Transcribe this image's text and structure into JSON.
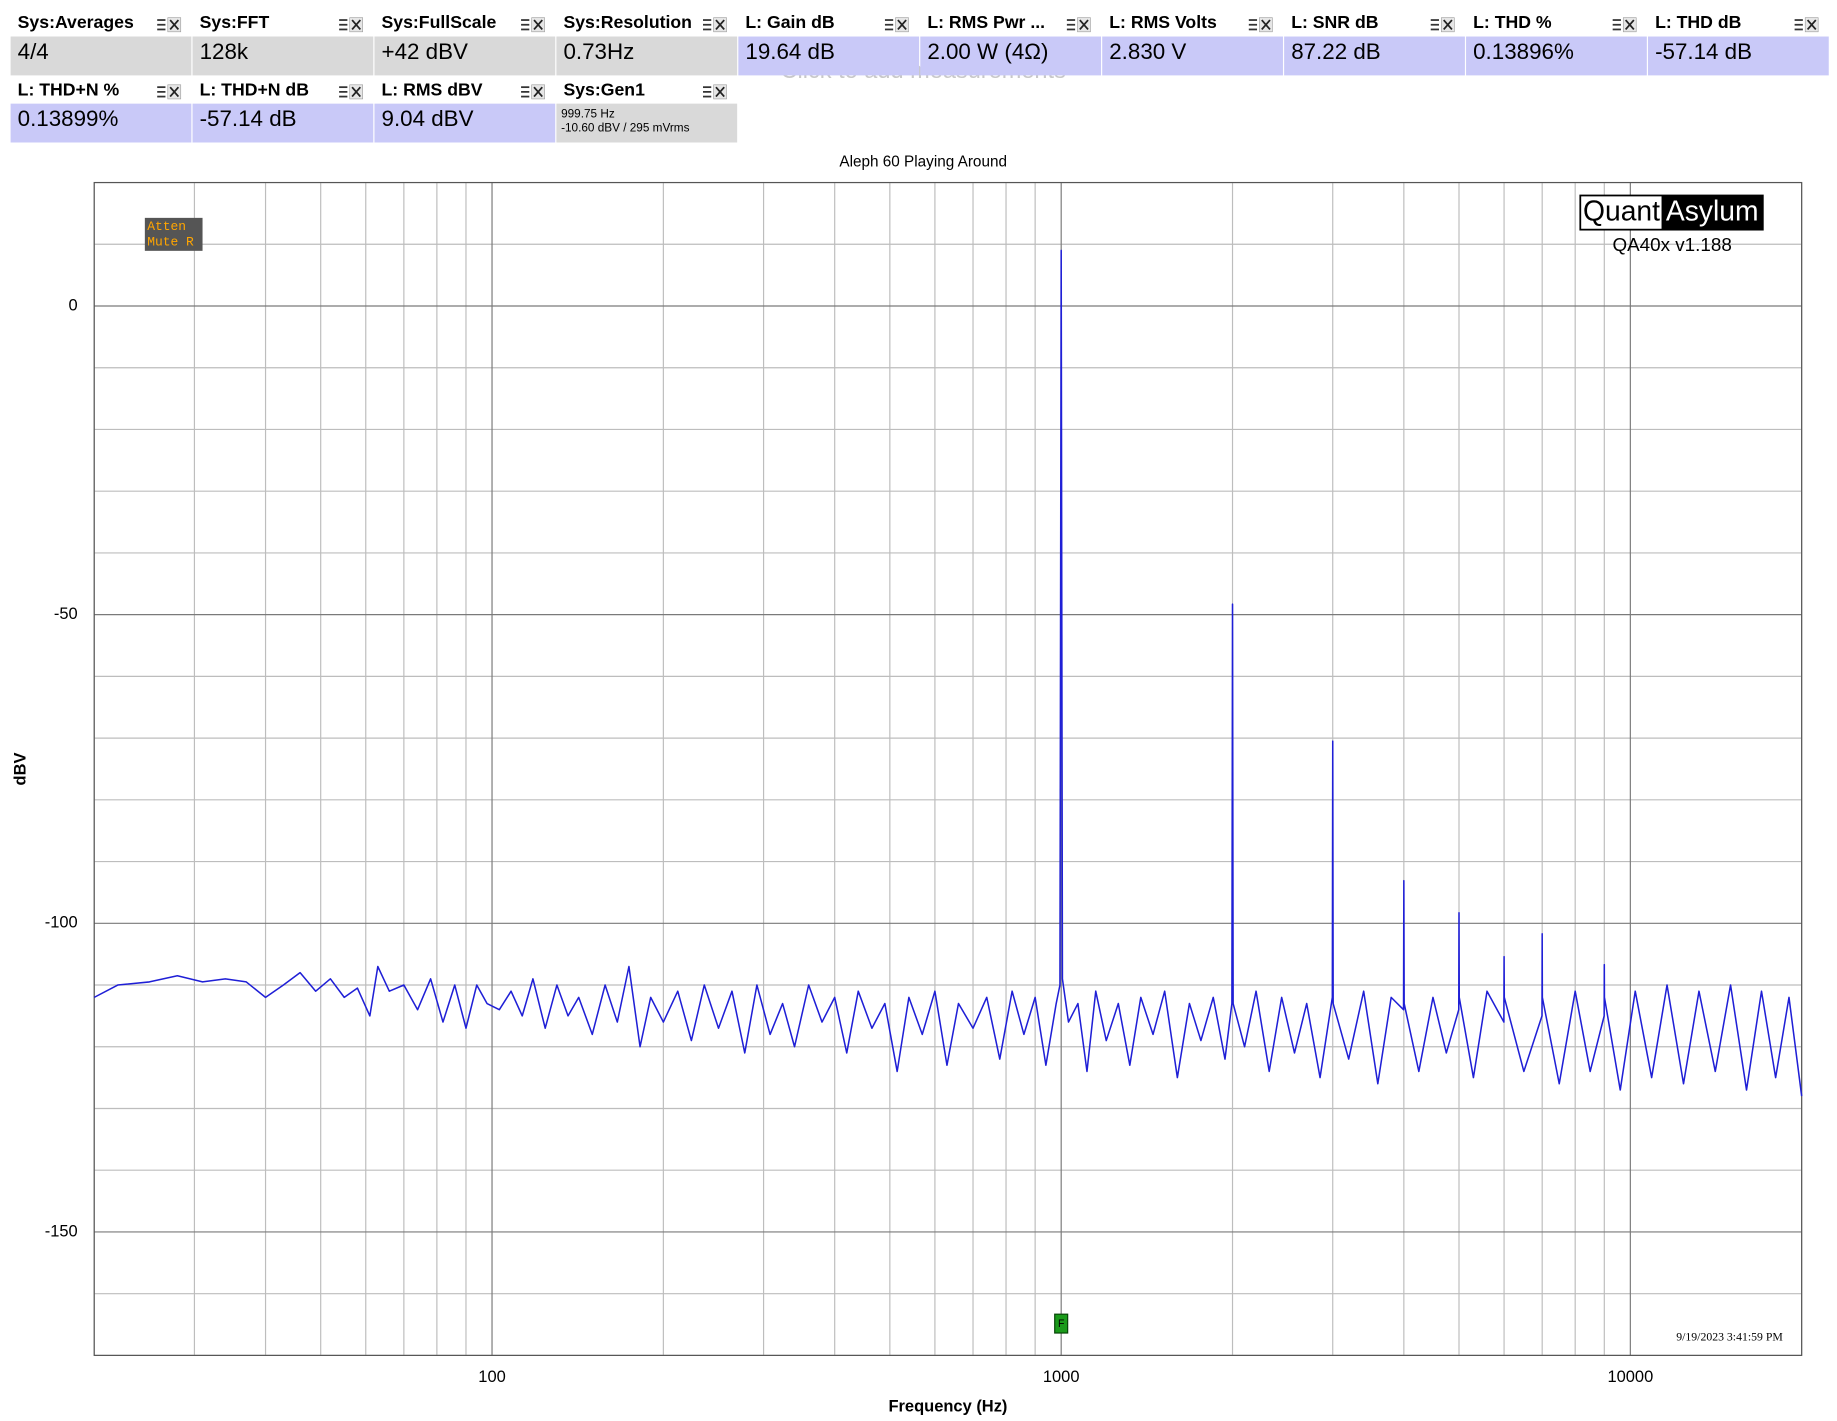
{
  "measurements": {
    "rows": [
      [
        {
          "label": "Sys:Averages",
          "value": "4/4"
        },
        {
          "label": "Sys:FFT",
          "value": "128k"
        },
        {
          "label": "Sys:FullScale",
          "value": "+42 dBV"
        },
        {
          "label": "Sys:Resolution",
          "value": "0.73Hz"
        },
        {
          "label": "L: Gain dB",
          "value": "19.64 dB"
        },
        {
          "label": "L: RMS Pwr ...",
          "value": "2.00 W (4Ω)"
        },
        {
          "label": "L: RMS Volts",
          "value": "2.830 V"
        },
        {
          "label": "L: SNR dB",
          "value": "87.22 dB"
        },
        {
          "label": "L: THD %",
          "value": "0.13896%"
        },
        {
          "label": "L: THD dB",
          "value": "-57.14 dB"
        }
      ],
      [
        {
          "label": "L: THD+N %",
          "value": "0.13899%"
        },
        {
          "label": "L: THD+N dB",
          "value": "-57.14 dB"
        },
        {
          "label": "L: RMS dBV",
          "value": "9.04 dBV"
        },
        {
          "label": "Sys:Gen1",
          "lines": [
            "999.75 Hz",
            "-10.60 dBV  / 295 mVrms"
          ]
        }
      ]
    ],
    "hint": "Click to add measurements"
  },
  "badge": [
    "Atten",
    "Mute R"
  ],
  "logo": {
    "left": "Quant",
    "right": "Asylum",
    "version": "QA40x v1.188"
  },
  "timestamp": "9/19/2023 3:41:59 PM",
  "chart_data": {
    "type": "line",
    "title": "Aleph 60 Playing Around",
    "x_label": "Frequency (Hz)",
    "y_label": "dBV",
    "log_x": true,
    "grid": true,
    "color": "#1f1fd6",
    "xlim": [
      20,
      20000
    ],
    "xticks": [
      100,
      1000,
      10000
    ],
    "x_minor_ticks": [
      20,
      30,
      40,
      50,
      60,
      70,
      80,
      90,
      200,
      300,
      400,
      500,
      600,
      700,
      800,
      900,
      2000,
      3000,
      4000,
      5000,
      6000,
      7000,
      8000,
      9000,
      20000
    ],
    "ylim": [
      -170,
      20
    ],
    "yticks": [
      0,
      -50,
      -100,
      -150
    ],
    "y_minor_ticks": [
      20,
      10,
      -10,
      -20,
      -30,
      -40,
      -60,
      -70,
      -80,
      -90,
      -110,
      -120,
      -130,
      -140,
      -160,
      -170
    ],
    "marker_label": "F",
    "marker_x": 1000,
    "x": [
      20,
      22,
      25,
      28,
      31,
      34,
      37,
      40,
      43,
      46,
      49,
      52,
      55,
      58,
      61,
      63,
      66,
      70,
      74,
      78,
      82,
      86,
      90,
      94,
      98,
      103,
      108,
      113,
      118,
      124,
      130,
      136,
      142,
      150,
      158,
      166,
      174,
      182,
      190,
      200,
      212,
      224,
      236,
      250,
      264,
      278,
      292,
      308,
      324,
      340,
      360,
      380,
      400,
      420,
      440,
      465,
      490,
      515,
      540,
      570,
      600,
      630,
      660,
      700,
      740,
      780,
      820,
      860,
      900,
      940,
      980,
      995,
      1000,
      1005,
      1030,
      1070,
      1110,
      1150,
      1200,
      1260,
      1320,
      1380,
      1450,
      1520,
      1600,
      1680,
      1760,
      1850,
      1940,
      1995,
      2000,
      2005,
      2100,
      2200,
      2320,
      2440,
      2570,
      2700,
      2850,
      2995,
      3000,
      3005,
      3200,
      3400,
      3600,
      3800,
      3995,
      4000,
      4005,
      4250,
      4500,
      4750,
      4995,
      5000,
      5005,
      5300,
      5600,
      5995,
      6000,
      6005,
      6500,
      6995,
      7000,
      7005,
      7500,
      8000,
      8500,
      8995,
      9000,
      9005,
      9600,
      10200,
      10900,
      11600,
      12400,
      13200,
      14100,
      15000,
      16000,
      17000,
      18000,
      19000,
      20000
    ],
    "values": [
      -112,
      -110,
      -109.5,
      -108.5,
      -109.5,
      -109,
      -109.5,
      -112,
      -110,
      -108,
      -111,
      -109,
      -112,
      -110.5,
      -115,
      -107,
      -111,
      -110,
      -114,
      -109,
      -116,
      -110,
      -117,
      -110,
      -113,
      -114,
      -111,
      -115,
      -109,
      -117,
      -110,
      -115,
      -112,
      -118,
      -110,
      -116,
      -107,
      -120,
      -112,
      -116,
      -111,
      -119,
      -110,
      -117,
      -111,
      -121,
      -110,
      -118,
      -113,
      -120,
      -110,
      -116,
      -112,
      -121,
      -111,
      -117,
      -113,
      -124,
      -112,
      -118,
      -111,
      -123,
      -113,
      -117,
      -112,
      -122,
      -111,
      -118,
      -112,
      -123,
      -113,
      -110,
      9,
      -109,
      -116,
      -113,
      -124,
      -111,
      -119,
      -113,
      -123,
      -112,
      -118,
      -111,
      -125,
      -113,
      -119,
      -112,
      -122,
      -113,
      -48.3,
      -113,
      -120,
      -111,
      -124,
      -112,
      -121,
      -113,
      -125,
      -112,
      -70.5,
      -113,
      -122,
      -111,
      -126,
      -112,
      -114,
      -93.1,
      -113,
      -124,
      -112,
      -121,
      -114,
      -98.3,
      -112,
      -125,
      -111,
      -116,
      -105.4,
      -112,
      -124,
      -115,
      -101.7,
      -112,
      -126,
      -111,
      -124,
      -115,
      -106.7,
      -112,
      -127,
      -111,
      -125,
      -110,
      -126,
      -111,
      -124,
      -110,
      -127,
      -111,
      -125,
      -112,
      -128
    ]
  }
}
